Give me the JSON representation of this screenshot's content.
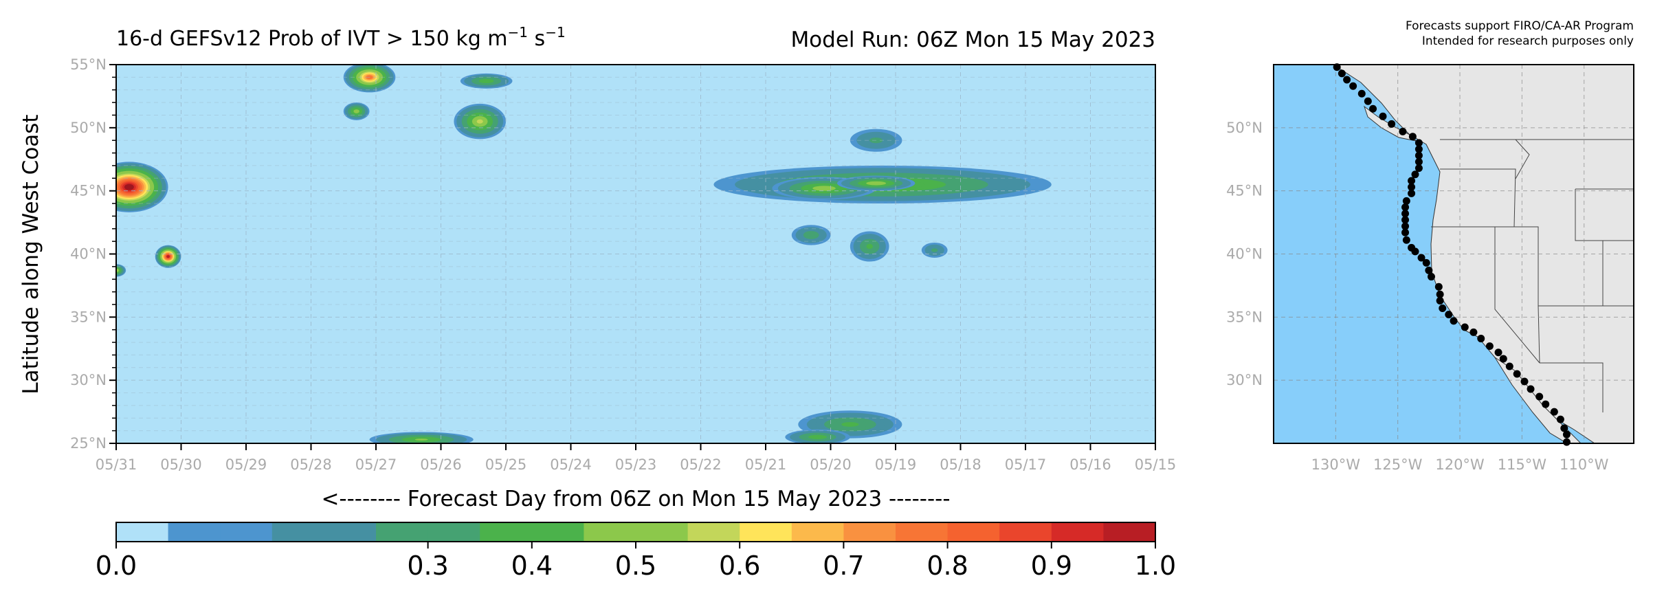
{
  "header": {
    "left_title_main": "16-d GEFSv12 Prob of IVT > 150 kg m",
    "left_title_sup1": "−1",
    "left_title_mid": " s",
    "left_title_sup2": "−1",
    "right_title": "Model Run: 06Z Mon 15 May 2023",
    "note_line1": "Forecasts support FIRO/CA-AR Program",
    "note_line2": "Intended for research purposes only"
  },
  "colors": {
    "ocean": "#87cefa",
    "land": "#e6e6e6",
    "grid": "#9bb7c9",
    "tick_label": "#aaaaaa"
  },
  "chart_data": [
    {
      "type": "heatmap",
      "title": "16-d GEFSv12 Prob of IVT > 150 kg m−1 s−1",
      "xlabel": "<-------- Forecast Day from 06Z on Mon 15 May 2023 --------",
      "ylabel": "Latitude along West Coast",
      "x_tick_labels": [
        "05/31",
        "05/30",
        "05/29",
        "05/28",
        "05/27",
        "05/26",
        "05/25",
        "05/24",
        "05/23",
        "05/22",
        "05/21",
        "05/20",
        "05/19",
        "05/18",
        "05/17",
        "05/16",
        "05/15"
      ],
      "y_tick_labels": [
        "25°N",
        "30°N",
        "35°N",
        "40°N",
        "45°N",
        "50°N",
        "55°N"
      ],
      "xlim": [
        0,
        16
      ],
      "ylim": [
        25,
        55
      ],
      "x_axis_reversed": true,
      "grid": true,
      "colorbar": {
        "levels": [
          0.0,
          0.05,
          0.1,
          0.15,
          0.2,
          0.25,
          0.3,
          0.35,
          0.4,
          0.45,
          0.5,
          0.55,
          0.6,
          0.65,
          0.7,
          0.75,
          0.8,
          0.85,
          0.9,
          0.95,
          1.0
        ],
        "tick_labels": [
          "0.0",
          "0.3",
          "0.4",
          "0.5",
          "0.6",
          "0.7",
          "0.8",
          "0.9",
          "1.0"
        ],
        "colors": [
          "#b0e1f8",
          "#4d95cf",
          "#4d95cf",
          "#4590a2",
          "#4590a2",
          "#45a272",
          "#45a272",
          "#4bb24b",
          "#4bb24b",
          "#8cc84b",
          "#8cc84b",
          "#c3d65a",
          "#ffe45a",
          "#fcb94b",
          "#f99140",
          "#f77535",
          "#f5622f",
          "#ea452c",
          "#d62a27",
          "#b81e24",
          "#9e1720"
        ],
        "tick_positions": [
          0.0,
          0.3,
          0.4,
          0.5,
          0.6,
          0.7,
          0.8,
          0.9,
          1.0
        ]
      },
      "features": [
        {
          "day": 4.2,
          "lat": 45.5,
          "rx": 2.6,
          "ry": 1.5,
          "peak": 0.4
        },
        {
          "day": 5.1,
          "lat": 45.2,
          "rx": 0.8,
          "ry": 0.9,
          "peak": 0.45
        },
        {
          "day": 4.3,
          "lat": 45.6,
          "rx": 0.6,
          "ry": 0.6,
          "peak": 0.47
        },
        {
          "day": 4.3,
          "lat": 49.0,
          "rx": 0.4,
          "ry": 0.9,
          "peak": 0.2
        },
        {
          "day": 3.4,
          "lat": 40.3,
          "rx": 0.2,
          "ry": 0.6,
          "peak": 0.2
        },
        {
          "day": 4.4,
          "lat": 40.6,
          "rx": 0.3,
          "ry": 1.2,
          "peak": 0.3
        },
        {
          "day": 5.3,
          "lat": 41.5,
          "rx": 0.3,
          "ry": 0.8,
          "peak": 0.25
        },
        {
          "day": 4.7,
          "lat": 26.5,
          "rx": 0.8,
          "ry": 1.1,
          "peak": 0.3
        },
        {
          "day": 5.2,
          "lat": 25.5,
          "rx": 0.5,
          "ry": 0.6,
          "peak": 0.35
        },
        {
          "day": 10.3,
          "lat": 53.7,
          "rx": 0.4,
          "ry": 0.6,
          "peak": 0.35
        },
        {
          "day": 10.4,
          "lat": 50.5,
          "rx": 0.4,
          "ry": 1.4,
          "peak": 0.5
        },
        {
          "day": 12.1,
          "lat": 54.0,
          "rx": 0.4,
          "ry": 1.2,
          "peak": 0.72
        },
        {
          "day": 12.3,
          "lat": 51.3,
          "rx": 0.2,
          "ry": 0.7,
          "peak": 0.45
        },
        {
          "day": 11.3,
          "lat": 25.3,
          "rx": 0.8,
          "ry": 0.6,
          "peak": 0.4
        },
        {
          "day": 15.8,
          "lat": 45.3,
          "rx": 0.6,
          "ry": 2.0,
          "peak": 0.97
        },
        {
          "day": 15.2,
          "lat": 39.8,
          "rx": 0.2,
          "ry": 0.9,
          "peak": 0.9
        },
        {
          "day": 16.0,
          "lat": 38.7,
          "rx": 0.15,
          "ry": 0.5,
          "peak": 0.5
        }
      ]
    },
    {
      "type": "map",
      "lon_tick_labels": [
        "130°W",
        "125°W",
        "120°W",
        "115°W",
        "110°W"
      ],
      "lat_tick_labels": [
        "30°N",
        "35°N",
        "40°N",
        "45°N",
        "50°N"
      ],
      "lonlim": [
        -135,
        -106
      ],
      "latlim": [
        25,
        55
      ],
      "points": [
        [
          -129.9,
          54.8
        ],
        [
          -129.5,
          54.3
        ],
        [
          -129.1,
          53.8
        ],
        [
          -128.6,
          53.3
        ],
        [
          -127.9,
          52.7
        ],
        [
          -127.4,
          52.1
        ],
        [
          -127.0,
          51.5
        ],
        [
          -126.2,
          50.9
        ],
        [
          -125.5,
          50.3
        ],
        [
          -124.6,
          49.7
        ],
        [
          -123.8,
          49.3
        ],
        [
          -123.3,
          48.8
        ],
        [
          -123.3,
          48.3
        ],
        [
          -123.3,
          47.8
        ],
        [
          -123.3,
          47.3
        ],
        [
          -123.3,
          46.8
        ],
        [
          -123.6,
          46.3
        ],
        [
          -123.9,
          45.8
        ],
        [
          -123.9,
          45.3
        ],
        [
          -123.9,
          44.8
        ],
        [
          -124.3,
          44.2
        ],
        [
          -124.4,
          43.7
        ],
        [
          -124.4,
          43.2
        ],
        [
          -124.4,
          42.7
        ],
        [
          -124.4,
          42.2
        ],
        [
          -124.4,
          41.7
        ],
        [
          -124.3,
          41.1
        ],
        [
          -123.9,
          40.5
        ],
        [
          -123.6,
          40.2
        ],
        [
          -123.1,
          39.7
        ],
        [
          -122.7,
          39.3
        ],
        [
          -122.5,
          38.7
        ],
        [
          -122.3,
          38.2
        ],
        [
          -121.7,
          37.4
        ],
        [
          -121.6,
          36.8
        ],
        [
          -121.6,
          36.3
        ],
        [
          -121.4,
          35.7
        ],
        [
          -120.9,
          35.2
        ],
        [
          -120.5,
          34.7
        ],
        [
          -119.6,
          34.2
        ],
        [
          -118.9,
          33.8
        ],
        [
          -118.3,
          33.3
        ],
        [
          -117.6,
          32.7
        ],
        [
          -116.9,
          32.2
        ],
        [
          -116.5,
          31.7
        ],
        [
          -116.0,
          31.1
        ],
        [
          -115.4,
          30.5
        ],
        [
          -114.8,
          29.9
        ],
        [
          -114.3,
          29.3
        ],
        [
          -113.6,
          28.7
        ],
        [
          -113.1,
          28.1
        ],
        [
          -112.4,
          27.5
        ],
        [
          -111.9,
          26.9
        ],
        [
          -111.6,
          26.2
        ],
        [
          -111.4,
          25.7
        ],
        [
          -111.4,
          25.1
        ]
      ]
    }
  ],
  "colorbar_tick_texts": [
    "0.0",
    "0.3",
    "0.4",
    "0.5",
    "0.6",
    "0.7",
    "0.8",
    "0.9",
    "1.0"
  ]
}
